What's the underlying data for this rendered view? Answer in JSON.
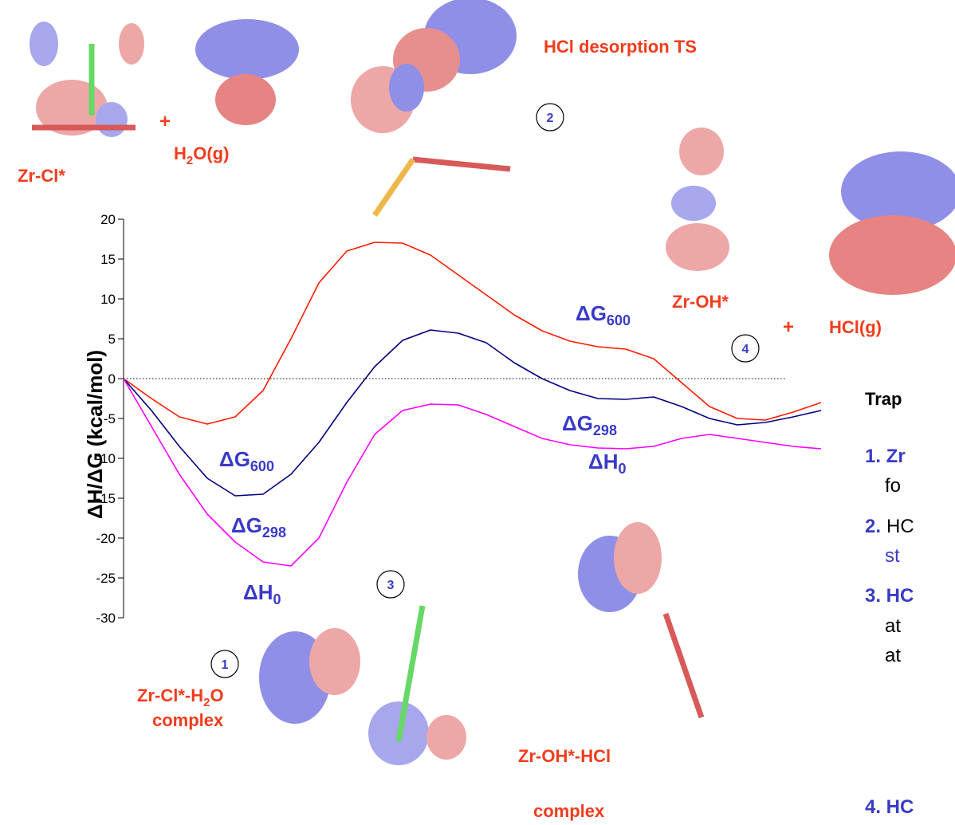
{
  "chart_data": {
    "type": "line",
    "y_label": "ΔH/ΔG (kcal/mol)",
    "categories": [
      null,
      null,
      null,
      null,
      null,
      null,
      null,
      null,
      null,
      null,
      null,
      null,
      null,
      null,
      null,
      null,
      null,
      null,
      null,
      null,
      null,
      null,
      null,
      null,
      null,
      null
    ],
    "ylim": [
      -30,
      20
    ],
    "yticks": [
      -30,
      -25,
      -20,
      -15,
      -10,
      -5,
      0,
      5,
      10,
      15,
      20
    ],
    "series": [
      {
        "name": "ΔG",
        "name_sub": "600",
        "color": "#ff1a00",
        "values": [
          0,
          -2.5,
          -4.8,
          -5.7,
          -4.8,
          -1.5,
          5,
          12,
          16,
          17.1,
          17,
          15.5,
          13,
          10.5,
          8,
          6,
          4.7,
          4,
          3.7,
          2.5,
          -0.5,
          -3.5,
          -5,
          -5.2,
          -4.2,
          -3
        ]
      },
      {
        "name": "ΔG",
        "name_sub": "298",
        "color": "#000080",
        "values": [
          0,
          -4,
          -8.5,
          -12.5,
          -14.7,
          -14.5,
          -12,
          -8,
          -3,
          1.5,
          4.8,
          6.1,
          5.7,
          4.5,
          2,
          0,
          -1.5,
          -2.5,
          -2.6,
          -2.3,
          -3.5,
          -5,
          -5.8,
          -5.5,
          -4.8,
          -4
        ]
      },
      {
        "name": "ΔH",
        "name_sub": "0",
        "color": "#ff00ff",
        "values": [
          0,
          -6,
          -12,
          -17,
          -20.5,
          -23,
          -23.5,
          -20,
          -13,
          -7,
          -4,
          -3.2,
          -3.3,
          -4.5,
          -6,
          -7.5,
          -8.3,
          -8.7,
          -8.8,
          -8.5,
          -7.5,
          -7,
          -7.5,
          -8,
          -8.5,
          -8.8
        ]
      }
    ]
  },
  "annotations": [
    {
      "text": "Zr-Cl*"
    },
    {
      "text": "+"
    },
    {
      "text": "H",
      "sub": "2",
      "tail": "O(g)"
    },
    {
      "text": "HCl desorption TS"
    },
    {
      "text": "Zr-OH*"
    },
    {
      "text": "+"
    },
    {
      "text": "HCl(g)"
    },
    {
      "text": "Zr-Cl*-H",
      "sub": "2",
      "tail": "O"
    },
    {
      "text": "complex"
    },
    {
      "text": "Zr-OH*-HCl"
    },
    {
      "text": "complex"
    }
  ],
  "steps": [
    "1",
    "2",
    "3",
    "4"
  ],
  "notes": {
    "heading": "Trap",
    "lines": [
      "1. Zr",
      "fo",
      "2.",
      "HC",
      "st",
      "3. HC",
      "at",
      "at",
      "4. HC"
    ]
  }
}
